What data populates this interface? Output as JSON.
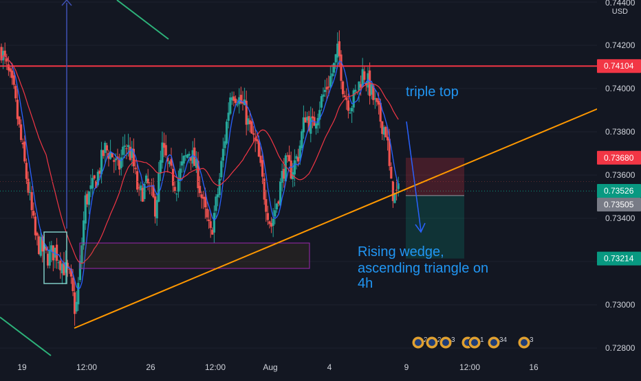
{
  "chart_data": {
    "type": "candlestick",
    "symbol_currency": "USD",
    "y_axis": {
      "range": [
        0.727,
        0.7445
      ],
      "ticks": [
        "0.74400",
        "0.74200",
        "0.74000",
        "0.73800",
        "0.73600",
        "0.73400",
        "0.73200",
        "0.73000",
        "0.72800"
      ],
      "tick_values": [
        0.744,
        0.742,
        0.74,
        0.738,
        0.736,
        0.734,
        0.732,
        0.73,
        0.728
      ]
    },
    "x_axis": {
      "ticks": [
        "19",
        "12:00",
        "26",
        "12:00",
        "Aug",
        "4",
        "9",
        "12:00",
        "16"
      ]
    },
    "price_labels": [
      {
        "value": "0.74104",
        "price": 0.74104,
        "color": "#f23645"
      },
      {
        "value": "0.73680",
        "price": 0.7368,
        "color": "#f23645"
      },
      {
        "value": "0.73526",
        "price": 0.73526,
        "color": "#089981"
      },
      {
        "value": "0.73505",
        "price": 0.73505,
        "color": "#787b86"
      },
      {
        "value": "0.73214",
        "price": 0.73214,
        "color": "#089981"
      }
    ],
    "horizontal_line": {
      "price": 0.74104,
      "color": "#f23645"
    },
    "trendline": {
      "color": "#ff9800",
      "from_price": 0.729,
      "to_price": 0.739
    },
    "position": {
      "entry": 0.73505,
      "stop": 0.7368,
      "target": 0.73214
    },
    "annotations": [
      {
        "text": "triple top",
        "color": "#2196f3"
      },
      {
        "text": "Rising wedge,",
        "color": "#2196f3"
      },
      {
        "text": "ascending triangle on",
        "color": "#2196f3"
      },
      {
        "text": "4h",
        "color": "#2196f3"
      }
    ],
    "event_badges": [
      "2",
      "2",
      "3",
      "5",
      "1",
      "34",
      "3"
    ],
    "colors": {
      "background": "#131722",
      "up": "#26a69a",
      "down": "#ef5350",
      "ma_fast": "#2962ff",
      "ma_slow": "#f23645",
      "wedge_line": "#ff9800",
      "channel_line": "#2db37a"
    }
  }
}
